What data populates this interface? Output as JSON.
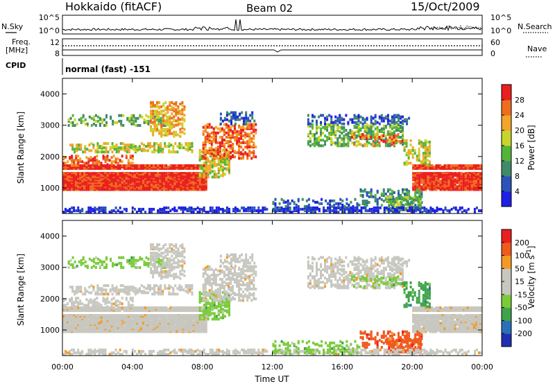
{
  "header": {
    "station": "Hokkaido (fitACF)",
    "beam": "Beam 02",
    "date": "15/Oct/2009"
  },
  "strip": {
    "nsky_label": "N.Sky",
    "nsearch_label": "N.Search",
    "nsky_ticks": [
      "10^5",
      "10^0"
    ],
    "freq_label_line1": "Freq.",
    "freq_label_line2": "[MHz]",
    "freq_ticks": [
      "12",
      "8"
    ],
    "nave_label": "Nave",
    "nave_ticks": [
      "60",
      "0"
    ],
    "cpid_label": "CPID",
    "cpid_value": "normal (fast) -151"
  },
  "colors": {
    "power_scale": [
      "#1f1fe6",
      "#2a54b8",
      "#3f8a6a",
      "#55b33a",
      "#c9d42a",
      "#f2a52a",
      "#ef6d1f",
      "#ea1f1f"
    ],
    "velocity_scale": [
      "#ea1f1f",
      "#ef5a1f",
      "#f49a24",
      "#c7c7c0",
      "#c7c7c0",
      "#7acb3a",
      "#3ea34a",
      "#2a6fb8",
      "#2030b0"
    ]
  },
  "chart_data": [
    {
      "type": "heatmap",
      "panel": "power",
      "ylabel": "Slant Range [km]",
      "y_ticks": [
        "1000",
        "2000",
        "3000",
        "4000"
      ],
      "y_range": [
        180,
        4500
      ],
      "x_range": [
        "00:00",
        "24:00"
      ],
      "colorbar": {
        "label": "Power [dB]",
        "ticks": [
          "4",
          "8",
          "12",
          "16",
          "20",
          "24",
          "28"
        ],
        "range": [
          0,
          32
        ]
      }
    },
    {
      "type": "heatmap",
      "panel": "velocity",
      "ylabel": "Slant Range [km]",
      "y_ticks": [
        "1000",
        "2000",
        "3000",
        "4000"
      ],
      "y_range": [
        180,
        4500
      ],
      "xlabel": "Time UT",
      "x_ticks": [
        "00:00",
        "04:00",
        "08:00",
        "12:00",
        "16:00",
        "20:00",
        "00:00"
      ],
      "x_range": [
        "00:00",
        "24:00"
      ],
      "colorbar": {
        "label": "Velocity [m s",
        "ticks": [
          "200",
          "100",
          "50",
          "15",
          "-15",
          "-50",
          "-100",
          "-200"
        ]
      }
    }
  ]
}
